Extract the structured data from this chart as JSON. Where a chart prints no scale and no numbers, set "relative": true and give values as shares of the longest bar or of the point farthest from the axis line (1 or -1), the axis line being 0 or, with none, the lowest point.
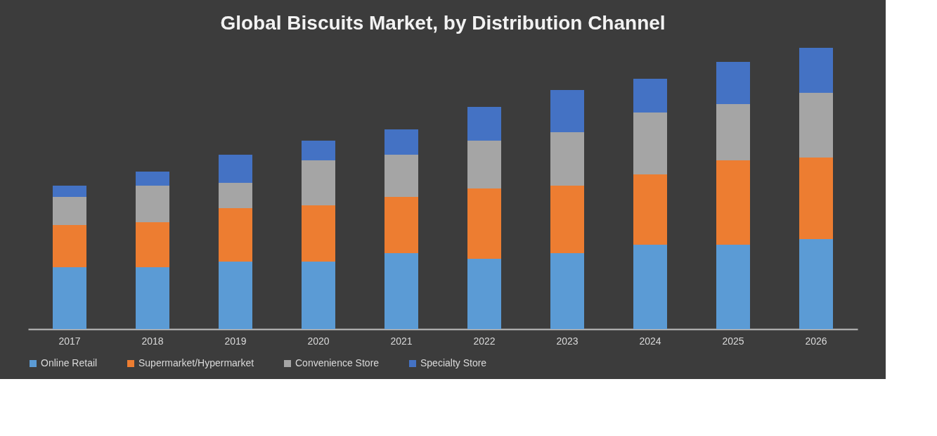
{
  "chart_data": {
    "type": "bar",
    "title": "Global Biscuits Market, by Distribution Channel",
    "categories": [
      "2017",
      "2018",
      "2019",
      "2020",
      "2021",
      "2022",
      "2023",
      "2024",
      "2025",
      "2026"
    ],
    "stacked": true,
    "relative": true,
    "legend": "bottom",
    "grid": false,
    "series": [
      {
        "name": "Online Retail",
        "color": "#5b9bd5",
        "values": [
          0.22,
          0.22,
          0.24,
          0.24,
          0.27,
          0.25,
          0.27,
          0.3,
          0.3,
          0.32
        ]
      },
      {
        "name": "Supermarket/Hypermarket",
        "color": "#ed7d31",
        "values": [
          0.15,
          0.16,
          0.19,
          0.2,
          0.2,
          0.25,
          0.24,
          0.25,
          0.3,
          0.29
        ]
      },
      {
        "name": "Convenience Store",
        "color": "#a5a5a5",
        "values": [
          0.1,
          0.13,
          0.09,
          0.16,
          0.15,
          0.17,
          0.19,
          0.22,
          0.2,
          0.23
        ]
      },
      {
        "name": "Specialty Store",
        "color": "#4472c4",
        "values": [
          0.04,
          0.05,
          0.1,
          0.07,
          0.09,
          0.12,
          0.15,
          0.12,
          0.15,
          0.16
        ]
      }
    ]
  }
}
